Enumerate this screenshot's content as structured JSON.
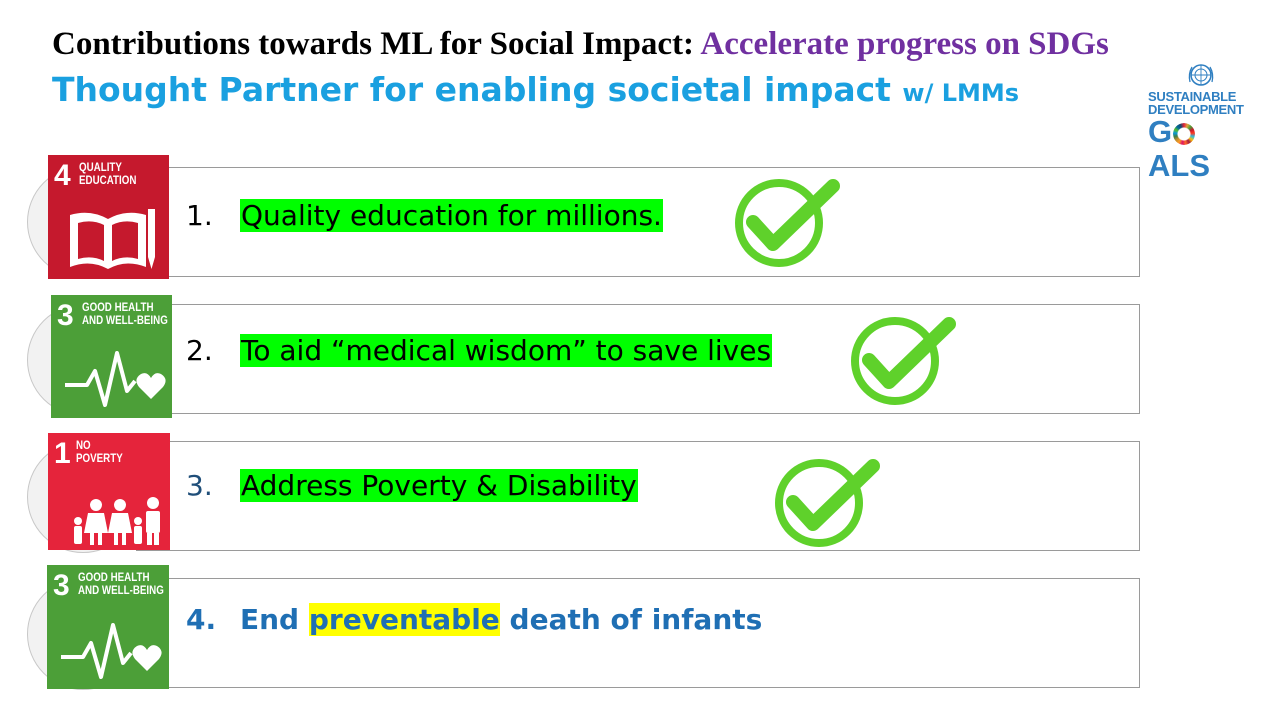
{
  "header": {
    "title_main": "Contributions towards ML for Social Impact: ",
    "title_accent": "Accelerate progress on SDGs",
    "subtitle_main": "Thought Partner for enabling societal impact ",
    "subtitle_small": "w/ LMMs"
  },
  "sdg_logo": {
    "line1": "SUSTAINABLE",
    "line2": "DEVELOPMENT",
    "goals_g": "G",
    "goals_rest": "ALS",
    "icon": "un-emblem-icon"
  },
  "colors": {
    "accent_purple": "#7030a0",
    "subtitle_blue": "#1aa0e0",
    "highlight_green": "#00ff00",
    "highlight_yellow": "#ffff00",
    "check_green": "#5fd12b",
    "sdg4_red": "#c5192d",
    "sdg3_green": "#4c9f38",
    "sdg1_red": "#e5243b",
    "item4_blue": "#1f6fb4"
  },
  "items": [
    {
      "number": "1.",
      "text": "Quality education for millions.",
      "sdg": {
        "number": "4",
        "label_line1": "QUALITY",
        "label_line2": "EDUCATION",
        "icon": "book-pencil-icon"
      },
      "checked": true
    },
    {
      "number": "2.",
      "text": "To aid “medical wisdom” to save lives",
      "sdg": {
        "number": "3",
        "label_line1": "GOOD HEALTH",
        "label_line2": "AND WELL-BEING",
        "icon": "heartbeat-icon"
      },
      "checked": true
    },
    {
      "number": "3.",
      "text": "Address  Poverty & Disability",
      "sdg": {
        "number": "1",
        "label_line1": "NO",
        "label_line2": "POVERTY",
        "icon": "family-icon"
      },
      "checked": true
    },
    {
      "number": "4.",
      "text_before": "End ",
      "text_highlight": "preventable",
      "text_after": " death of infants",
      "sdg": {
        "number": "3",
        "label_line1": "GOOD HEALTH",
        "label_line2": "AND WELL-BEING",
        "icon": "heartbeat-icon"
      },
      "checked": false
    }
  ]
}
